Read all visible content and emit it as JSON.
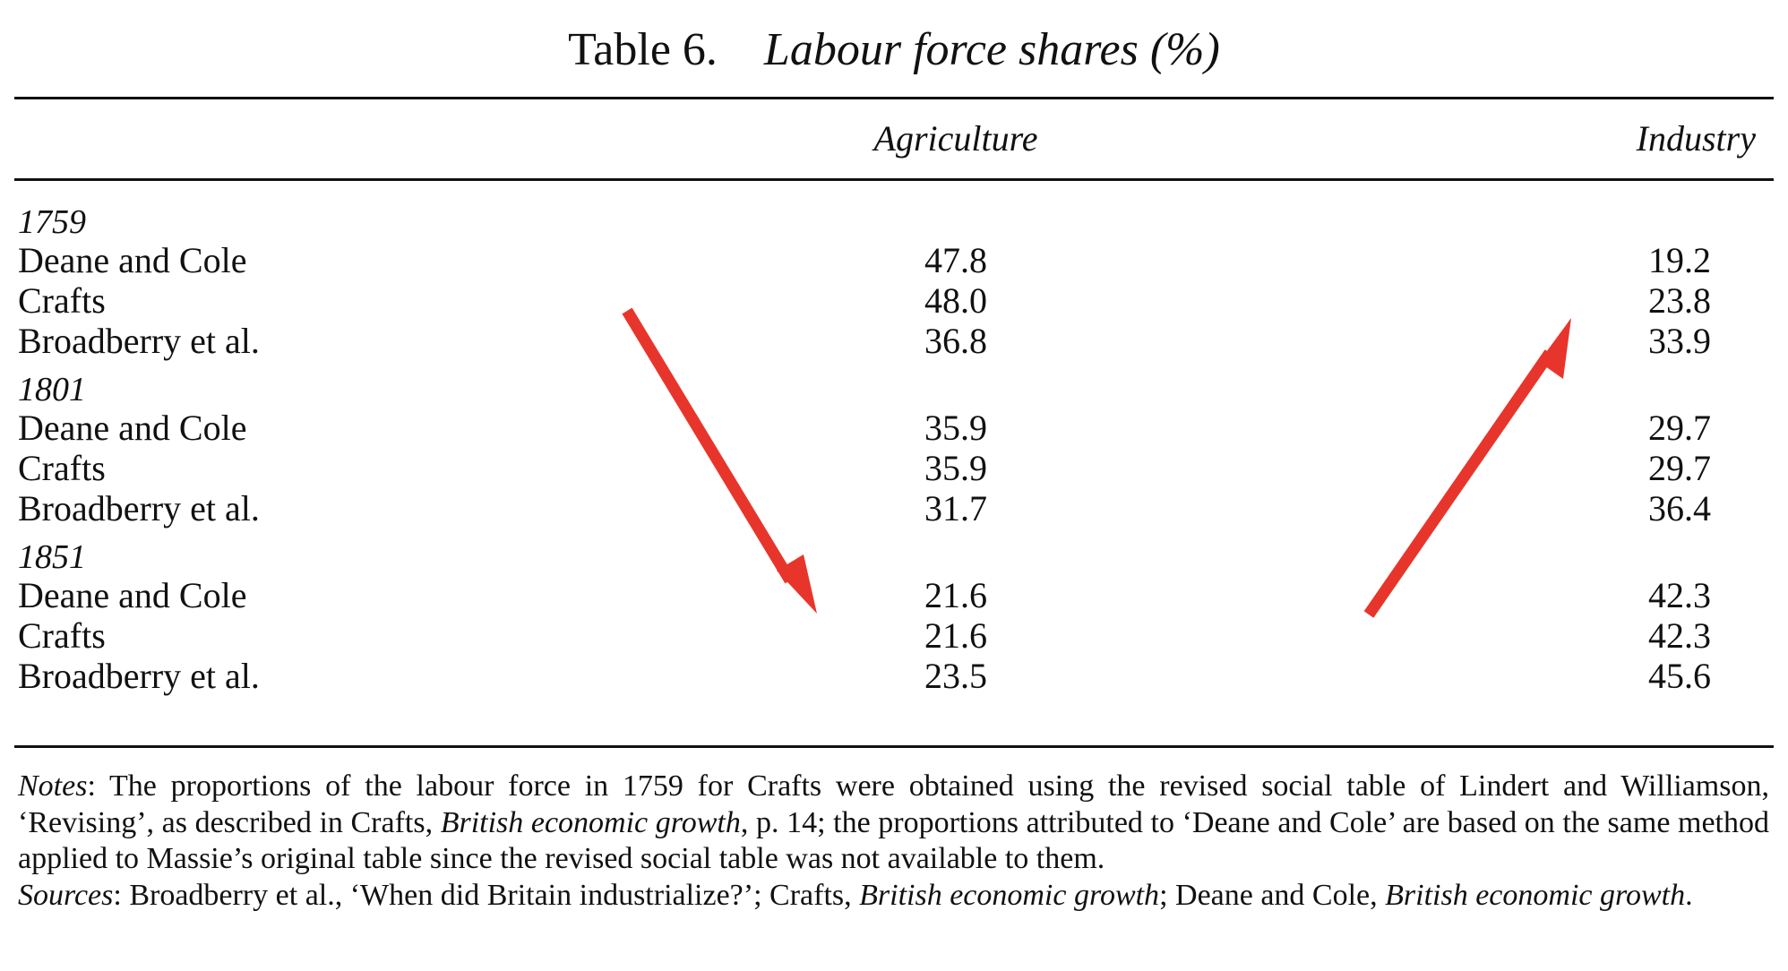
{
  "table": {
    "number": "Table 6.",
    "title": "Labour force shares (%)",
    "columns": [
      "Agriculture",
      "Industry"
    ],
    "groups": [
      {
        "year": "1759",
        "rows": [
          {
            "label": "Deane and Cole",
            "agriculture": "47.8",
            "industry": "19.2"
          },
          {
            "label": "Crafts",
            "agriculture": "48.0",
            "industry": "23.8"
          },
          {
            "label": "Broadberry et al.",
            "agriculture": "36.8",
            "industry": "33.9"
          }
        ]
      },
      {
        "year": "1801",
        "rows": [
          {
            "label": "Deane and Cole",
            "agriculture": "35.9",
            "industry": "29.7"
          },
          {
            "label": "Crafts",
            "agriculture": "35.9",
            "industry": "29.7"
          },
          {
            "label": "Broadberry et al.",
            "agriculture": "31.7",
            "industry": "36.4"
          }
        ]
      },
      {
        "year": "1851",
        "rows": [
          {
            "label": "Deane and Cole",
            "agriculture": "21.6",
            "industry": "42.3"
          },
          {
            "label": "Crafts",
            "agriculture": "21.6",
            "industry": "42.3"
          },
          {
            "label": "Broadberry et al.",
            "agriculture": "23.5",
            "industry": "45.6"
          }
        ]
      }
    ]
  },
  "notes": {
    "notes_label": "Notes",
    "notes_part1": ": The proportions of the labour force in 1759 for Crafts were obtained using the revised social table of Lindert and Williamson, ‘Revising’, as described in Crafts, ",
    "notes_book": "British economic growth",
    "notes_part2": ", p. 14; the proportions attributed to ‘Deane and Cole’ are based on the same method applied to Massie’s original table since the revised social table was not available to them.",
    "sources_label": "Sources",
    "sources_part1": ": Broadberry et al., ‘When did Britain industrialize?’; Crafts, ",
    "sources_book1": "British economic growth",
    "sources_part2": "; Deane and Cole, ",
    "sources_book2": "British economic growth",
    "sources_part3": "."
  },
  "annotations": {
    "arrow_color": "#e8352b",
    "arrows": [
      {
        "name": "agriculture-trend-arrow",
        "direction": "down"
      },
      {
        "name": "industry-trend-arrow",
        "direction": "up"
      }
    ]
  }
}
